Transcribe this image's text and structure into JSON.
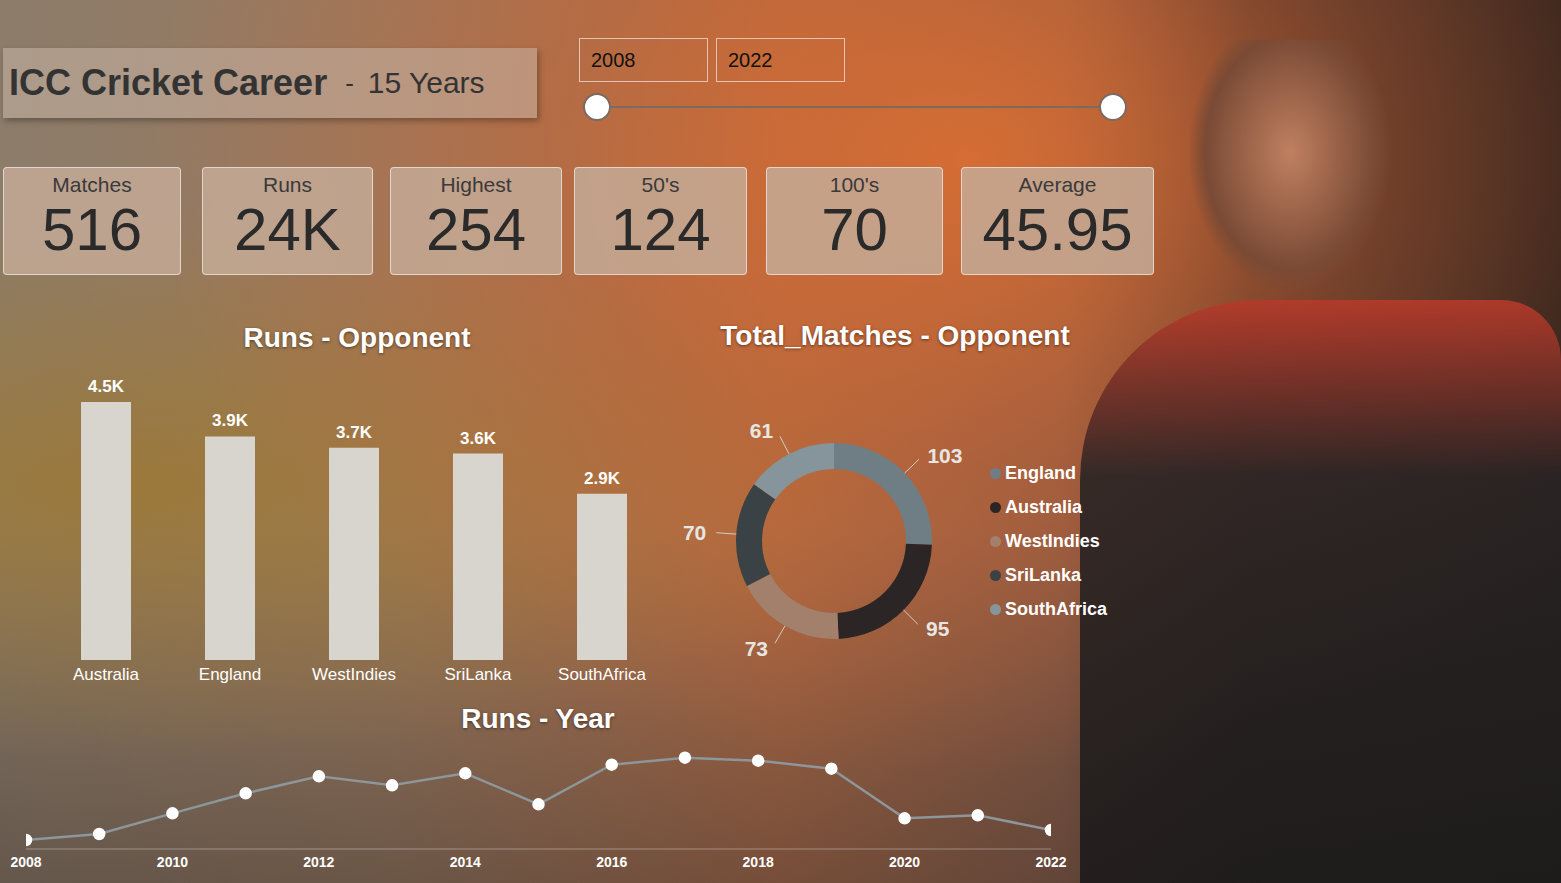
{
  "header": {
    "title": "ICC Cricket Career",
    "separator": "-",
    "subtitle": "15 Years"
  },
  "slider": {
    "start": "2008",
    "end": "2022"
  },
  "kpis": [
    {
      "label": "Matches",
      "value": "516"
    },
    {
      "label": "Runs",
      "value": "24K"
    },
    {
      "label": "Highest",
      "value": "254"
    },
    {
      "label": "50's",
      "value": "124"
    },
    {
      "label": "100's",
      "value": "70"
    },
    {
      "label": "Average",
      "value": "45.95"
    }
  ],
  "chart_data": [
    {
      "type": "bar",
      "title": "Runs - Opponent",
      "categories": [
        "Australia",
        "England",
        "WestIndies",
        "SriLanka",
        "SouthAfrica"
      ],
      "values": [
        4500,
        3900,
        3700,
        3600,
        2900
      ],
      "value_labels": [
        "4.5K",
        "3.9K",
        "3.7K",
        "3.6K",
        "2.9K"
      ],
      "data_labels": true,
      "tick_labels": "x",
      "color": "#d8d5cf",
      "ylim": [
        0,
        4500
      ]
    },
    {
      "type": "donut",
      "title": "Total_Matches - Opponent",
      "categories": [
        "England",
        "Australia",
        "WestIndies",
        "SriLanka",
        "SouthAfrica"
      ],
      "values": [
        103,
        95,
        73,
        70,
        61
      ],
      "colors": [
        "#6f7e85",
        "#2b2526",
        "#a3806c",
        "#3b4245",
        "#86959b"
      ],
      "data_labels": true,
      "legend": "right"
    },
    {
      "type": "line",
      "title": "Runs - Year",
      "x": [
        2008,
        2009,
        2010,
        2011,
        2012,
        2013,
        2014,
        2015,
        2016,
        2017,
        2018,
        2019,
        2020,
        2021,
        2022
      ],
      "values": [
        270,
        450,
        1070,
        1670,
        2180,
        1910,
        2270,
        1340,
        2530,
        2740,
        2650,
        2410,
        920,
        1010,
        570
      ],
      "xlim": [
        2008,
        2022
      ],
      "xticks": [
        2008,
        2010,
        2012,
        2014,
        2016,
        2018,
        2020,
        2022
      ],
      "ylim": [
        0,
        3000
      ],
      "tick_labels": "x",
      "color": "#8d969a",
      "marker": "circle"
    }
  ]
}
